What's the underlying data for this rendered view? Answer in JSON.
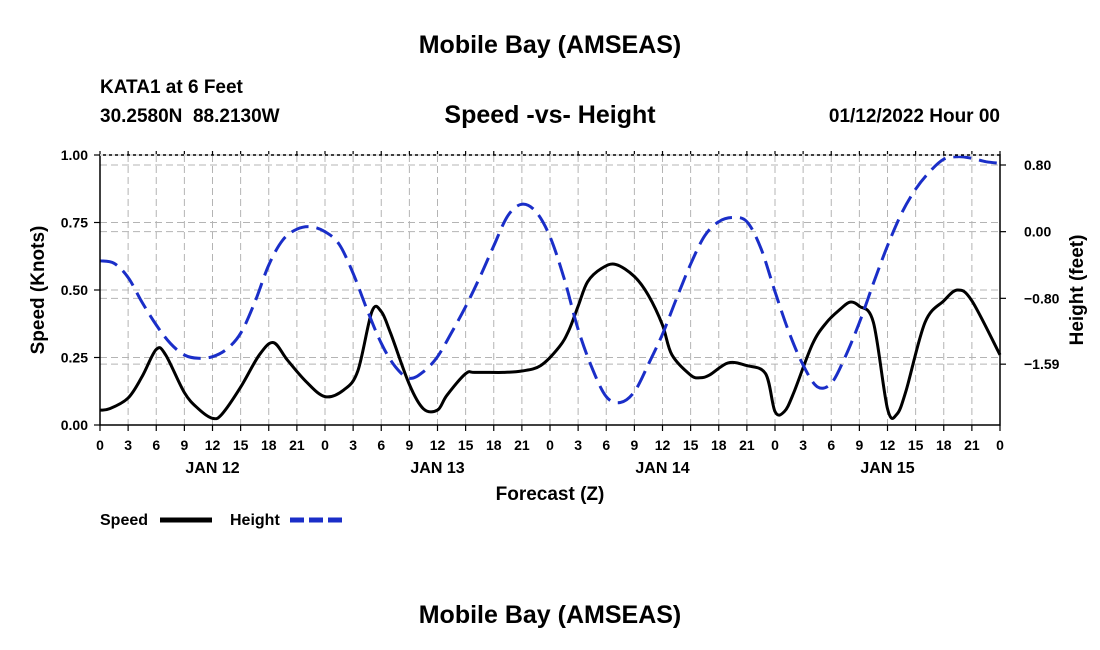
{
  "header": {
    "title": "Mobile Bay (AMSEAS)",
    "station": "KATA1 at 6 Feet",
    "coords": "30.2580N  88.2130W",
    "subtitle": "Speed -vs- Height",
    "datetime": "01/12/2022 Hour 00"
  },
  "footer": {
    "title": "Mobile Bay (AMSEAS)"
  },
  "legend": {
    "speed_label": "Speed",
    "height_label": "Height"
  },
  "chart_data": {
    "type": "line",
    "title": "Speed -vs- Height",
    "xlabel": "Forecast (Z)",
    "ylabel": "Speed (Knots)",
    "y2label": "Height (feet)",
    "xlim": [
      0,
      96
    ],
    "ylim": [
      0,
      1.0
    ],
    "y2lim": [
      -2.32,
      0.92
    ],
    "grid": true,
    "x_ticks": [
      0,
      3,
      6,
      9,
      12,
      15,
      18,
      21,
      24,
      27,
      30,
      33,
      36,
      39,
      42,
      45,
      48,
      51,
      54,
      57,
      60,
      63,
      66,
      69,
      72,
      75,
      78,
      81,
      84,
      87,
      90,
      93,
      96
    ],
    "x_tick_labels": [
      "0",
      "3",
      "6",
      "9",
      "12",
      "15",
      "18",
      "21",
      "0",
      "3",
      "6",
      "9",
      "12",
      "15",
      "18",
      "21",
      "0",
      "3",
      "6",
      "9",
      "12",
      "15",
      "18",
      "21",
      "0",
      "3",
      "6",
      "9",
      "12",
      "15",
      "18",
      "21",
      "0"
    ],
    "day_labels": [
      {
        "x": 12,
        "label": "JAN 12"
      },
      {
        "x": 36,
        "label": "JAN 13"
      },
      {
        "x": 60,
        "label": "JAN 14"
      },
      {
        "x": 84,
        "label": "JAN 15"
      }
    ],
    "y_ticks": [
      0.0,
      0.25,
      0.5,
      0.75,
      1.0
    ],
    "y_tick_labels": [
      "0.00",
      "0.25",
      "0.50",
      "0.75",
      "1.00"
    ],
    "y2_ticks": [
      0.8,
      0.0,
      -0.8,
      -1.59
    ],
    "y2_tick_labels": [
      "0.80",
      "0.00",
      "−0.80",
      "−1.59"
    ],
    "series": [
      {
        "name": "Speed",
        "axis": "left",
        "color": "#000000",
        "dash": "solid",
        "x": [
          0,
          1,
          3,
          4.5,
          6,
          7,
          9,
          10.5,
          12,
          13,
          15,
          17,
          18.5,
          20,
          22,
          24,
          26,
          27.5,
          29,
          30,
          31,
          33,
          34.5,
          36,
          37,
          39,
          40,
          43,
          45,
          47,
          49,
          50,
          51,
          52,
          53.5,
          55,
          57,
          58.5,
          60,
          61,
          63,
          64,
          65,
          67,
          69,
          71,
          72,
          73,
          74,
          76,
          77.5,
          79,
          80,
          81,
          82.5,
          84,
          85,
          86,
          88,
          90,
          91.5,
          93,
          96
        ],
        "y": [
          0.055,
          0.06,
          0.1,
          0.18,
          0.28,
          0.26,
          0.12,
          0.06,
          0.025,
          0.04,
          0.14,
          0.26,
          0.305,
          0.24,
          0.16,
          0.105,
          0.13,
          0.2,
          0.42,
          0.42,
          0.34,
          0.15,
          0.06,
          0.055,
          0.11,
          0.19,
          0.195,
          0.195,
          0.2,
          0.22,
          0.29,
          0.35,
          0.44,
          0.53,
          0.58,
          0.595,
          0.55,
          0.48,
          0.37,
          0.26,
          0.185,
          0.175,
          0.185,
          0.23,
          0.22,
          0.19,
          0.05,
          0.05,
          0.12,
          0.3,
          0.38,
          0.43,
          0.455,
          0.44,
          0.38,
          0.06,
          0.04,
          0.13,
          0.38,
          0.46,
          0.5,
          0.46,
          0.26
        ]
      },
      {
        "name": "Height",
        "axis": "right",
        "color": "#1a2ec8",
        "dash": "dashed",
        "x": [
          0,
          1.5,
          3,
          4.5,
          6,
          7.5,
          9,
          10.5,
          12,
          13.5,
          15,
          16.5,
          18,
          19.5,
          21,
          22.5,
          24,
          25.5,
          27,
          28.5,
          30,
          31.5,
          33,
          34.5,
          36,
          37.5,
          39,
          40.5,
          42,
          43.5,
          45,
          46.5,
          48,
          49.5,
          51,
          52.5,
          54,
          55.5,
          57,
          58.5,
          60,
          61.5,
          63,
          64.5,
          66,
          67.5,
          69,
          70.5,
          72,
          73.5,
          75,
          76.5,
          78,
          79.5,
          81,
          82.5,
          84,
          85.5,
          87,
          88.5,
          90,
          91.5,
          93,
          94.5,
          96
        ],
        "y": [
          -0.35,
          -0.38,
          -0.55,
          -0.85,
          -1.12,
          -1.34,
          -1.48,
          -1.52,
          -1.5,
          -1.41,
          -1.22,
          -0.85,
          -0.4,
          -0.1,
          0.03,
          0.06,
          0.0,
          -0.15,
          -0.5,
          -0.94,
          -1.34,
          -1.62,
          -1.76,
          -1.68,
          -1.5,
          -1.21,
          -0.9,
          -0.55,
          -0.17,
          0.19,
          0.33,
          0.24,
          -0.06,
          -0.56,
          -1.17,
          -1.64,
          -1.98,
          -2.05,
          -1.92,
          -1.59,
          -1.23,
          -0.8,
          -0.39,
          -0.05,
          0.12,
          0.17,
          0.12,
          -0.2,
          -0.72,
          -1.21,
          -1.6,
          -1.86,
          -1.82,
          -1.5,
          -1.09,
          -0.62,
          -0.17,
          0.22,
          0.51,
          0.72,
          0.87,
          0.9,
          0.88,
          0.84,
          0.82
        ]
      }
    ]
  }
}
